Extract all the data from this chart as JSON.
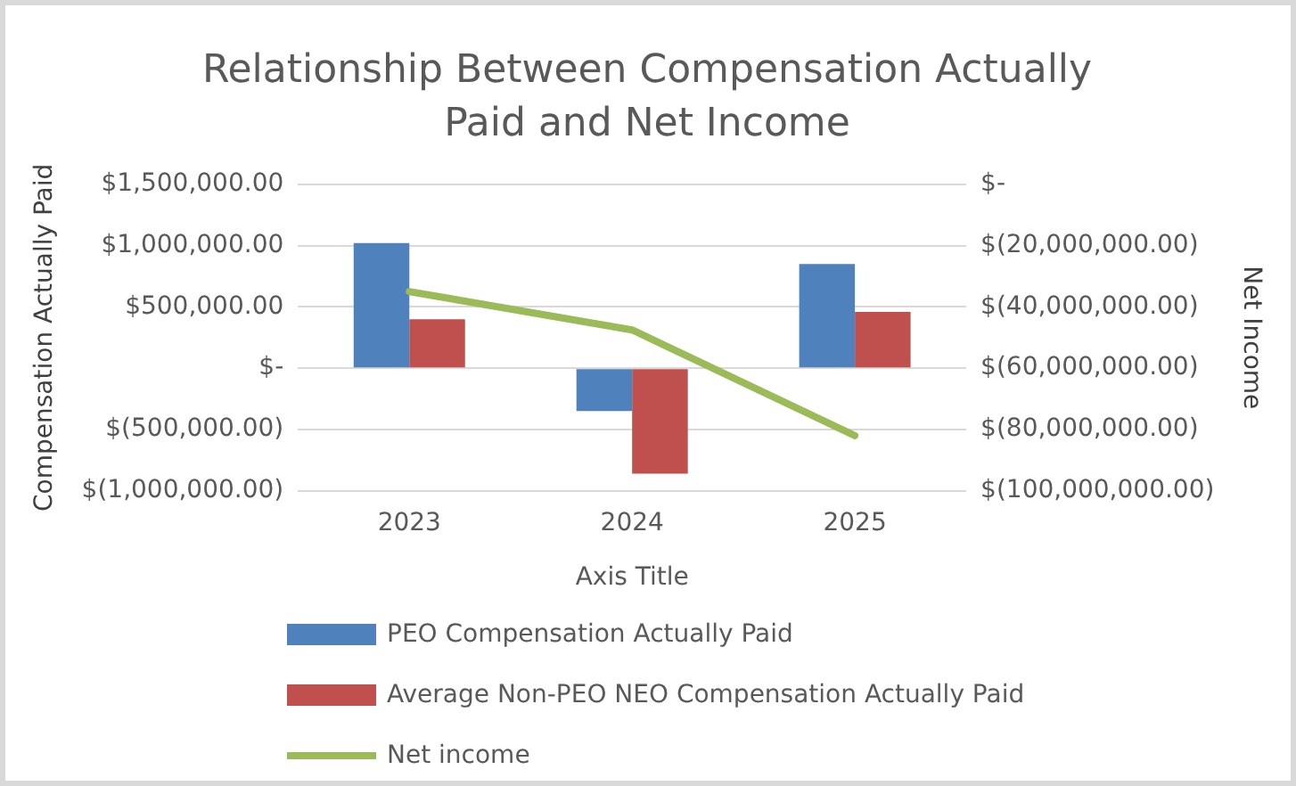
{
  "chart_data": {
    "type": "bar",
    "title": "Relationship Between Compensation Actually Paid and Net Income",
    "xlabel": "Axis Title",
    "ylabel": "Compensation Actually Paid",
    "y2label": "Net Income",
    "categories": [
      "2023",
      "2024",
      "2025"
    ],
    "series": [
      {
        "name": "PEO Compensation Actually Paid",
        "color": "#4f81bd",
        "values": [
          1020000,
          -350000,
          850000
        ]
      },
      {
        "name": "Average Non-PEO NEO Compensation Actually Paid",
        "color": "#c0504d",
        "values": [
          400000,
          -860000,
          460000
        ]
      },
      {
        "name": "Net income",
        "type": "line",
        "axis": "y2",
        "color": "#9bbb59",
        "values": [
          -35000000,
          -47500000,
          -82000000
        ]
      }
    ],
    "ylim": [
      -1000000,
      1500000
    ],
    "yticks": [
      {
        "value": -1000000,
        "label": "$(1,000,000.00)"
      },
      {
        "value": -500000,
        "label": "$(500,000.00)"
      },
      {
        "value": 0,
        "label": "$-"
      },
      {
        "value": 500000,
        "label": "$500,000.00"
      },
      {
        "value": 1000000,
        "label": "$1,000,000.00"
      },
      {
        "value": 1500000,
        "label": "$1,500,000.00"
      }
    ],
    "y2lim": [
      -100000000,
      0
    ],
    "y2ticks": [
      {
        "value": -100000000,
        "label": "$(100,000,000.00)"
      },
      {
        "value": -80000000,
        "label": "$(80,000,000.00)"
      },
      {
        "value": -60000000,
        "label": "$(60,000,000.00)"
      },
      {
        "value": -40000000,
        "label": "$(40,000,000.00)"
      },
      {
        "value": -20000000,
        "label": "$(20,000,000.00)"
      },
      {
        "value": 0,
        "label": "$-"
      }
    ],
    "grid": "y",
    "legend": "bottom",
    "marker": "none",
    "line_style": "solid"
  }
}
